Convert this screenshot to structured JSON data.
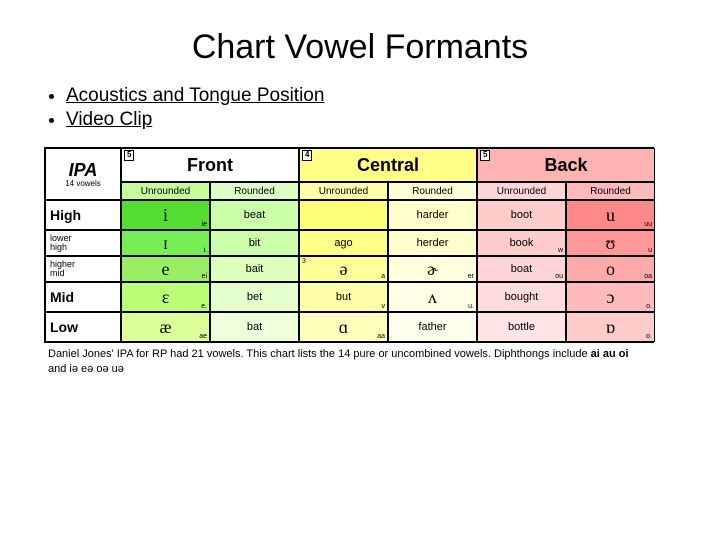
{
  "title": "Chart Vowel Formants",
  "links": {
    "acoustics": "Acoustics and Tongue Position",
    "video": "Video Clip"
  },
  "header": {
    "ipa_label": "IPA",
    "ipa_sub": "14 vowels",
    "positions": [
      {
        "label": "Front",
        "num": "5",
        "bg": "#aaff66"
      },
      {
        "label": "Central",
        "num": "4",
        "bg": "#ffff88"
      },
      {
        "label": "Back",
        "num": "5",
        "bg": "#ffb3b3"
      }
    ],
    "rounding": [
      "Unrounded",
      "Rounded"
    ]
  },
  "colors": {
    "front_unround": "#77ee44",
    "front_round": "#ccffaa",
    "cent_unround": "#ffff77",
    "cent_round": "#ffffcc",
    "back_unround": "#ffcccc",
    "back_round": "#ff9999"
  },
  "rows": [
    {
      "height": "High",
      "height_bg": "#fff",
      "cells": [
        {
          "bg": "#55dd33",
          "sym": "i",
          "sub": "ie"
        },
        {
          "bg": "#ccffaa",
          "word": "beat"
        },
        {
          "bg": "#ffff77",
          "word": ""
        },
        {
          "bg": "#ffffcc",
          "word": "harder"
        },
        {
          "bg": "#ffcccc",
          "word": "boot"
        },
        {
          "bg": "#ff8888",
          "sym": "u",
          "sub": "uu"
        }
      ]
    },
    {
      "height": "lower\nhigh",
      "sub_row": true,
      "cells": [
        {
          "bg": "#77ee55",
          "sym": "ɪ",
          "sub": "i."
        },
        {
          "bg": "#ccffaa",
          "word": "bit"
        },
        {
          "bg": "#ffff88",
          "word": "ago"
        },
        {
          "bg": "#ffffcc",
          "word": "herder"
        },
        {
          "bg": "#ffcccc",
          "word": "book",
          "sub": "w"
        },
        {
          "bg": "#ff9999",
          "sym": "ʊ",
          "sub": "u"
        }
      ]
    },
    {
      "height": "higher\nmid",
      "sub_row": true,
      "cells": [
        {
          "bg": "#99ee66",
          "sym": "e",
          "sub": "ei"
        },
        {
          "bg": "#ddffbb",
          "word": "bait"
        },
        {
          "bg": "#ffff99",
          "sym": "ə",
          "sub": "a",
          "top": "3"
        },
        {
          "bg": "#ffffdd",
          "sym": "ɚ",
          "sub": "er"
        },
        {
          "bg": "#ffd5d5",
          "word": "boat",
          "sub": "ou"
        },
        {
          "bg": "#ffaaaa",
          "sym": "o",
          "sub": "oa"
        }
      ]
    },
    {
      "height": "Mid",
      "cells": [
        {
          "bg": "#bbff77",
          "sym": "ɛ",
          "sub": "e."
        },
        {
          "bg": "#e5ffcc",
          "word": "bet"
        },
        {
          "bg": "#ffffaa",
          "word": "but",
          "sub": "v"
        },
        {
          "bg": "#ffffe5",
          "sym": "ʌ",
          "sub": "u."
        },
        {
          "bg": "#ffdddd",
          "word": "bought"
        },
        {
          "bg": "#ffbbbb",
          "sym": "ɔ",
          "sub": "o."
        }
      ]
    },
    {
      "height": "Low",
      "cells": [
        {
          "bg": "#ddff99",
          "sym": "æ",
          "sub": "ae"
        },
        {
          "bg": "#eeffdd",
          "word": "bat"
        },
        {
          "bg": "#ffffbb",
          "sym": "ɑ",
          "sub": "aa"
        },
        {
          "bg": "#ffffee",
          "word": "father"
        },
        {
          "bg": "#ffe5e5",
          "word": "bottle"
        },
        {
          "bg": "#ffcccc",
          "sym": "ɒ",
          "sub": "o."
        }
      ]
    }
  ],
  "footnote": {
    "part1": "Daniel Jones' IPA for RP had 21 vowels.  This chart lists the 14 pure or uncombined vowels.  Diphthongs include ",
    "bold1": "ai  au  oi",
    "part2": " and ",
    "tail": "iə  eə  oə  uə"
  }
}
